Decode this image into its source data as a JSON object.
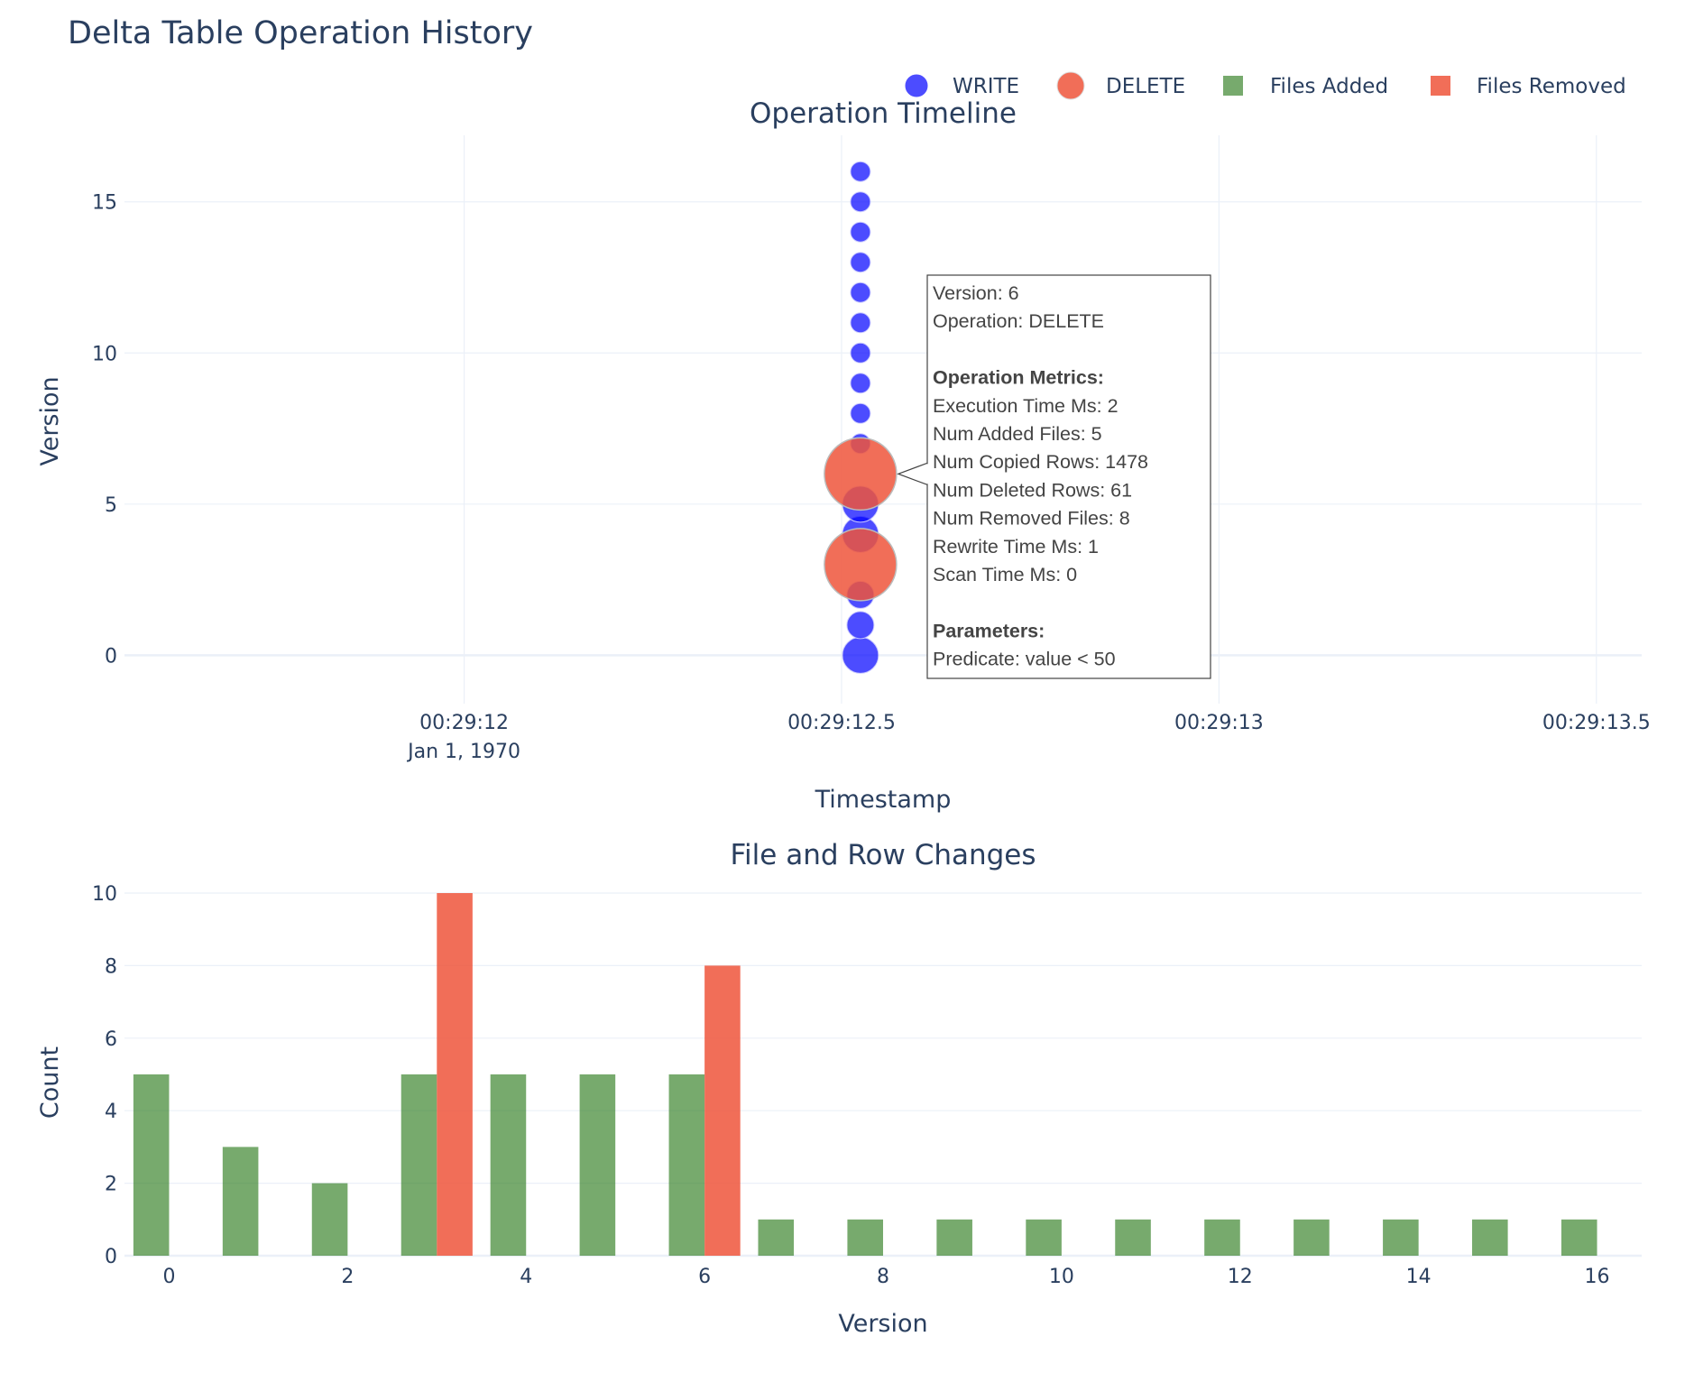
{
  "figure_title": "Delta Table Operation History",
  "legend": [
    {
      "label": "WRITE",
      "symbol": "circle",
      "color": "#0000ff"
    },
    {
      "label": "DELETE",
      "symbol": "circle",
      "color": "#ef553b"
    },
    {
      "label": "Files Added",
      "symbol": "square",
      "color": "#2e7d1e"
    },
    {
      "label": "Files Removed",
      "symbol": "square",
      "color": "#ef553b"
    }
  ],
  "colors": {
    "write": "#0000ff",
    "delete": "#ef553b",
    "files_added": "#2e7d1e",
    "files_removed": "#ef553b"
  },
  "chart_data": [
    {
      "type": "scatter",
      "title": "Operation Timeline",
      "xlabel": "Timestamp",
      "ylabel": "Version",
      "x_ticks": [
        {
          "value": "00:29:12",
          "sub": "Jan 1, 1970"
        },
        {
          "value": "00:29:12.5",
          "sub": ""
        },
        {
          "value": "00:29:13",
          "sub": ""
        },
        {
          "value": "00:29:13.5",
          "sub": ""
        }
      ],
      "x_range_seconds": [
        1751.55,
        1753.56
      ],
      "y_ticks": [
        0,
        5,
        10,
        15
      ],
      "ylim": [
        -1.6,
        17.2
      ],
      "grid": true,
      "points": [
        {
          "version": 0,
          "operation": "WRITE",
          "timestamp_s": 1752.525,
          "marker": "large"
        },
        {
          "version": 1,
          "operation": "WRITE",
          "timestamp_s": 1752.525,
          "marker": "medium"
        },
        {
          "version": 2,
          "operation": "WRITE",
          "timestamp_s": 1752.525,
          "marker": "medium"
        },
        {
          "version": 3,
          "operation": "DELETE",
          "timestamp_s": 1752.525,
          "marker": "xlarge"
        },
        {
          "version": 4,
          "operation": "WRITE",
          "timestamp_s": 1752.525,
          "marker": "large"
        },
        {
          "version": 5,
          "operation": "WRITE",
          "timestamp_s": 1752.525,
          "marker": "large"
        },
        {
          "version": 6,
          "operation": "DELETE",
          "timestamp_s": 1752.525,
          "marker": "xlarge"
        },
        {
          "version": 7,
          "operation": "WRITE",
          "timestamp_s": 1752.525,
          "marker": "small"
        },
        {
          "version": 8,
          "operation": "WRITE",
          "timestamp_s": 1752.525,
          "marker": "small"
        },
        {
          "version": 9,
          "operation": "WRITE",
          "timestamp_s": 1752.525,
          "marker": "small"
        },
        {
          "version": 10,
          "operation": "WRITE",
          "timestamp_s": 1752.525,
          "marker": "small"
        },
        {
          "version": 11,
          "operation": "WRITE",
          "timestamp_s": 1752.525,
          "marker": "small"
        },
        {
          "version": 12,
          "operation": "WRITE",
          "timestamp_s": 1752.525,
          "marker": "small"
        },
        {
          "version": 13,
          "operation": "WRITE",
          "timestamp_s": 1752.525,
          "marker": "small"
        },
        {
          "version": 14,
          "operation": "WRITE",
          "timestamp_s": 1752.525,
          "marker": "small"
        },
        {
          "version": 15,
          "operation": "WRITE",
          "timestamp_s": 1752.525,
          "marker": "small"
        },
        {
          "version": 16,
          "operation": "WRITE",
          "timestamp_s": 1752.525,
          "marker": "small"
        }
      ],
      "tooltip": {
        "target_version": 6,
        "lines": [
          {
            "text": "Version: 6",
            "bold": false
          },
          {
            "text": "Operation: DELETE",
            "bold": false
          },
          {
            "text": "",
            "bold": false
          },
          {
            "text": "Operation Metrics:",
            "bold": true
          },
          {
            "text": "Execution Time Ms: 2",
            "bold": false
          },
          {
            "text": "Num Added Files: 5",
            "bold": false
          },
          {
            "text": "Num Copied Rows: 1478",
            "bold": false
          },
          {
            "text": "Num Deleted Rows: 61",
            "bold": false
          },
          {
            "text": "Num Removed Files: 8",
            "bold": false
          },
          {
            "text": "Rewrite Time Ms: 1",
            "bold": false
          },
          {
            "text": "Scan Time Ms: 0",
            "bold": false
          },
          {
            "text": "",
            "bold": false
          },
          {
            "text": "Parameters:",
            "bold": true
          },
          {
            "text": "Predicate: value < 50",
            "bold": false
          }
        ]
      }
    },
    {
      "type": "bar",
      "title": "File and Row Changes",
      "xlabel": "Version",
      "ylabel": "Count",
      "x_ticks": [
        0,
        2,
        4,
        6,
        8,
        10,
        12,
        14,
        16
      ],
      "x_range": [
        -0.5,
        16.5
      ],
      "y_ticks": [
        0,
        2,
        4,
        6,
        8,
        10
      ],
      "ylim": [
        0,
        10
      ],
      "grid": true,
      "categories": [
        0,
        1,
        2,
        3,
        4,
        5,
        6,
        7,
        8,
        9,
        10,
        11,
        12,
        13,
        14,
        15,
        16
      ],
      "series": [
        {
          "name": "Files Added",
          "values": [
            5,
            3,
            2,
            5,
            5,
            5,
            5,
            1,
            1,
            1,
            1,
            1,
            1,
            1,
            1,
            1,
            1
          ]
        },
        {
          "name": "Files Removed",
          "values": [
            0,
            0,
            0,
            10,
            0,
            0,
            8,
            0,
            0,
            0,
            0,
            0,
            0,
            0,
            0,
            0,
            0
          ]
        }
      ]
    }
  ]
}
